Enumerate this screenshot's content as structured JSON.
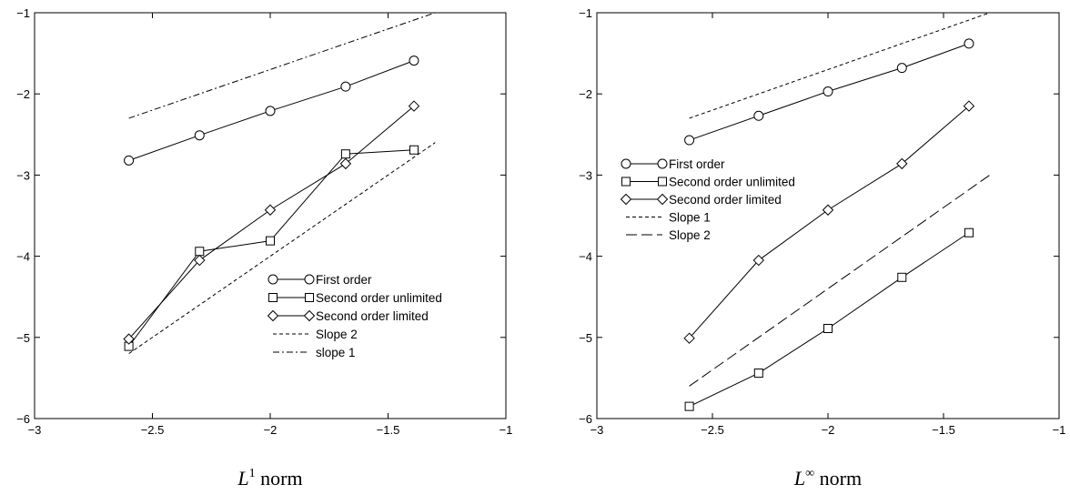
{
  "chart_data": [
    {
      "type": "line",
      "caption": {
        "main": "L",
        "sup": "1",
        "rest": " norm"
      },
      "xlim": [
        -3,
        -1
      ],
      "ylim": [
        -6,
        -1
      ],
      "x_ticks": [
        -3,
        -2.5,
        -2,
        -1.5,
        -1
      ],
      "x_tick_labels": [
        "−3",
        "−2.5",
        "−2",
        "−1.5",
        "−1"
      ],
      "y_ticks": [
        -6,
        -5,
        -4,
        -3,
        -2,
        -1
      ],
      "y_tick_labels": [
        "−6",
        "−5",
        "−4",
        "−3",
        "−2",
        "−1"
      ],
      "legend_position": "lower-right",
      "series": [
        {
          "name": "First order",
          "marker": "circle",
          "dash": "solid",
          "x": [
            -2.6,
            -2.3,
            -2.0,
            -1.68,
            -1.39
          ],
          "y": [
            -2.82,
            -2.51,
            -2.21,
            -1.91,
            -1.59
          ]
        },
        {
          "name": "Second order unlimited",
          "marker": "square",
          "dash": "solid",
          "x": [
            -2.6,
            -2.3,
            -2.0,
            -1.68,
            -1.39
          ],
          "y": [
            -5.11,
            -3.94,
            -3.81,
            -2.74,
            -2.69
          ]
        },
        {
          "name": "Second order limited",
          "marker": "diamond",
          "dash": "solid",
          "x": [
            -2.6,
            -2.3,
            -2.0,
            -1.68,
            -1.39
          ],
          "y": [
            -5.02,
            -4.05,
            -3.43,
            -2.86,
            -2.15
          ]
        },
        {
          "name": "Slope 2",
          "marker": "none",
          "dash": "dashed",
          "x": [
            -2.6,
            -1.3
          ],
          "y": [
            -5.2,
            -2.6
          ]
        },
        {
          "name": "slope 1",
          "marker": "none",
          "dash": "dashdot",
          "x": [
            -2.6,
            -1.3
          ],
          "y": [
            -2.3,
            -1.0
          ]
        }
      ]
    },
    {
      "type": "line",
      "caption": {
        "main": "L",
        "sup": "∞",
        "rest": " norm"
      },
      "xlim": [
        -3,
        -1
      ],
      "ylim": [
        -6,
        -1
      ],
      "x_ticks": [
        -3,
        -2.5,
        -2,
        -1.5,
        -1
      ],
      "x_tick_labels": [
        "−3",
        "−2.5",
        "−2",
        "−1.5",
        "−1"
      ],
      "y_ticks": [
        -6,
        -5,
        -4,
        -3,
        -2,
        -1
      ],
      "y_tick_labels": [
        "−6",
        "−5",
        "−4",
        "−3",
        "−2",
        "−1"
      ],
      "legend_position": "upper-left",
      "series": [
        {
          "name": "First order",
          "marker": "circle",
          "dash": "solid",
          "x": [
            -2.6,
            -2.3,
            -2.0,
            -1.68,
            -1.39
          ],
          "y": [
            -2.57,
            -2.27,
            -1.97,
            -1.68,
            -1.38
          ]
        },
        {
          "name": "Second order unlimited",
          "marker": "square",
          "dash": "solid",
          "x": [
            -2.6,
            -2.3,
            -2.0,
            -1.68,
            -1.39
          ],
          "y": [
            -5.85,
            -5.44,
            -4.89,
            -4.26,
            -3.71
          ]
        },
        {
          "name": "Second order limited",
          "marker": "diamond",
          "dash": "solid",
          "x": [
            -2.6,
            -2.3,
            -2.0,
            -1.68,
            -1.39
          ],
          "y": [
            -5.01,
            -4.05,
            -3.43,
            -2.86,
            -2.15
          ]
        },
        {
          "name": "Slope 1",
          "marker": "none",
          "dash": "dashed",
          "x": [
            -2.6,
            -1.3
          ],
          "y": [
            -2.3,
            -1.0
          ]
        },
        {
          "name": "Slope 2",
          "marker": "none",
          "dash": "longdash",
          "x": [
            -2.6,
            -1.3
          ],
          "y": [
            -5.6,
            -3.0
          ]
        }
      ]
    }
  ]
}
